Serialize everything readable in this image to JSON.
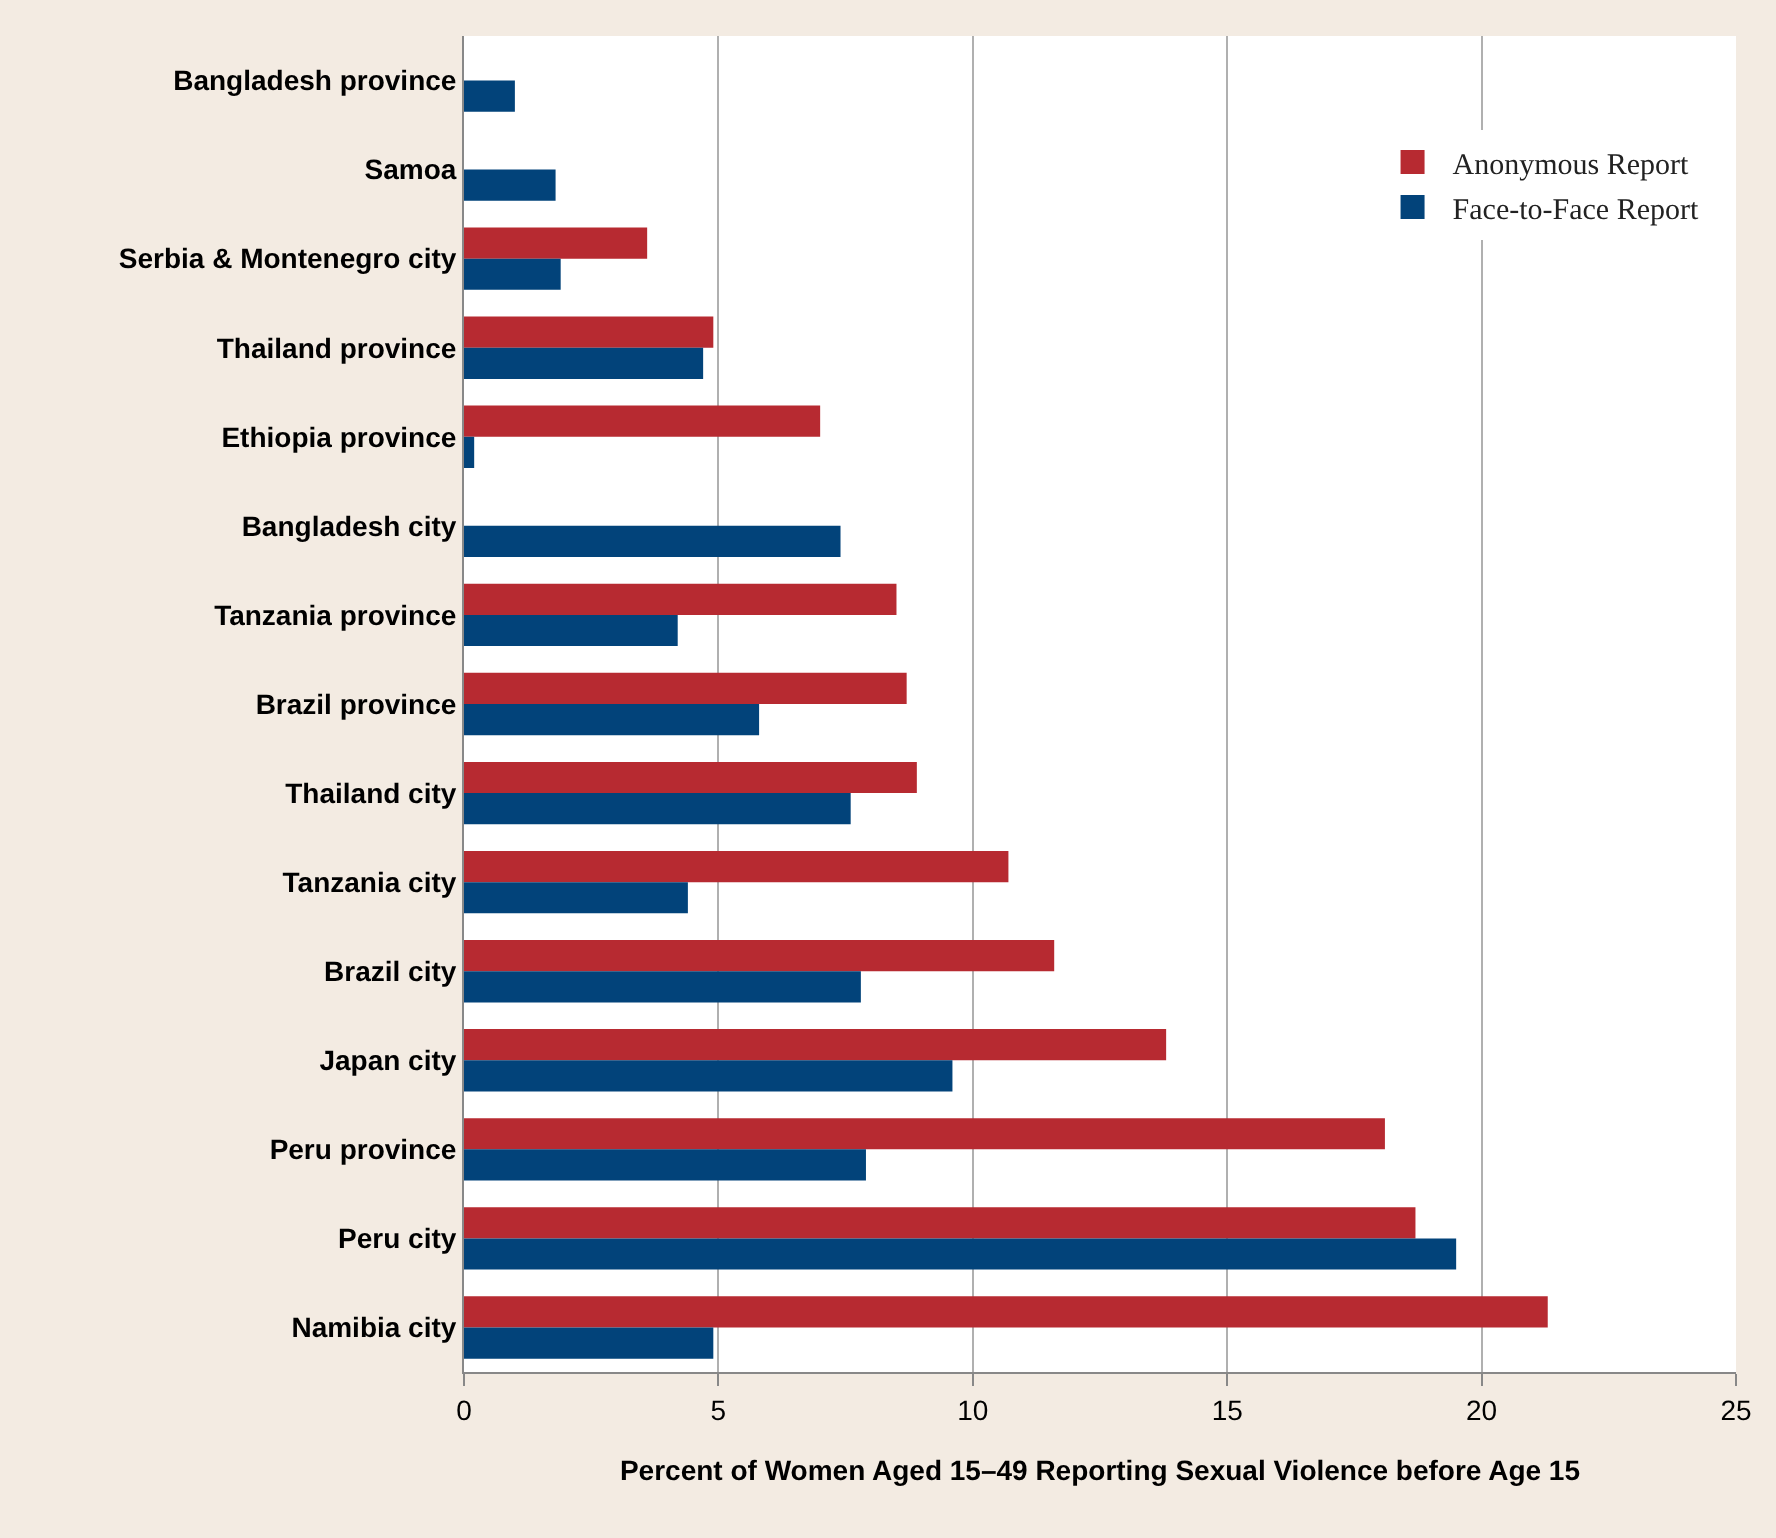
{
  "chart_data": {
    "type": "bar",
    "orientation": "horizontal",
    "xlabel": "Percent of Women Aged 15–49 Reporting Sexual Violence before Age 15",
    "categories": [
      "Bangladesh province",
      "Samoa",
      "Serbia & Montenegro city",
      "Thailand province",
      "Ethiopia province",
      "Bangladesh city",
      "Tanzania province",
      "Brazil province",
      "Thailand city",
      "Tanzania city",
      "Brazil city",
      "Japan city",
      "Peru province",
      "Peru city",
      "Namibia city"
    ],
    "series": [
      {
        "name": "Anonymous Report",
        "color": "#b72a31",
        "values": [
          null,
          null,
          3.6,
          4.9,
          7.0,
          null,
          8.5,
          8.7,
          8.9,
          10.7,
          11.6,
          13.8,
          18.1,
          18.7,
          21.3
        ]
      },
      {
        "name": "Face-to-Face Report",
        "color": "#02437a",
        "values": [
          1.0,
          1.8,
          1.9,
          4.7,
          0.2,
          7.4,
          4.2,
          5.8,
          7.6,
          4.4,
          7.8,
          9.6,
          7.9,
          19.5,
          4.9
        ]
      }
    ],
    "xlim": [
      0,
      25
    ],
    "xticks": [
      0,
      5,
      10,
      15,
      20,
      25
    ],
    "grid": "x",
    "legend": "top right"
  }
}
